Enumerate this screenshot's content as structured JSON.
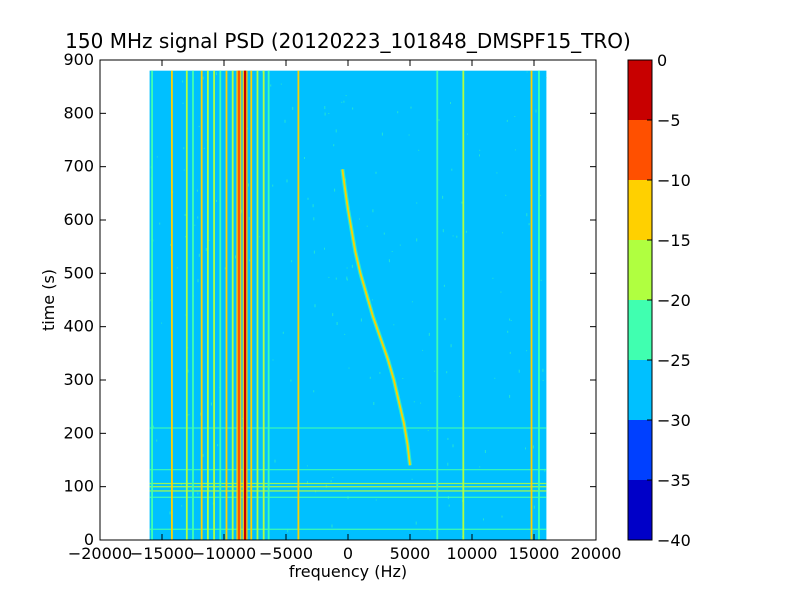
{
  "chart_data": {
    "type": "heatmap",
    "title": "150 MHz signal PSD (20120223_101848_DMSPF15_TRO)",
    "xlabel": "frequency (Hz)",
    "ylabel": "time (s)",
    "xlim": [
      -20000,
      20000
    ],
    "ylim": [
      0,
      900
    ],
    "data_extent": {
      "x": [
        -16000,
        16000
      ],
      "y": [
        0,
        880
      ]
    },
    "xticks": [
      -20000,
      -15000,
      -10000,
      -5000,
      0,
      5000,
      10000,
      15000,
      20000
    ],
    "xtick_labels": [
      "−20000",
      "−15000",
      "−10000",
      "−5000",
      "0",
      "5000",
      "10000",
      "15000",
      "20000"
    ],
    "yticks": [
      0,
      100,
      200,
      300,
      400,
      500,
      600,
      700,
      800,
      900
    ],
    "ytick_labels": [
      "0",
      "100",
      "200",
      "300",
      "400",
      "500",
      "600",
      "700",
      "800",
      "900"
    ],
    "background_level_db": -27,
    "colorbar": {
      "levels": [
        -40,
        -35,
        -30,
        -25,
        -20,
        -15,
        -10,
        -5,
        0
      ],
      "tick_labels": [
        "−40",
        "−35",
        "−30",
        "−25",
        "−20",
        "−15",
        "−10",
        "−5",
        "0"
      ],
      "colors": [
        "#0000c8",
        "#0040ff",
        "#00c0ff",
        "#40ffb0",
        "#b0ff40",
        "#ffd000",
        "#ff5000",
        "#c80000"
      ]
    },
    "vertical_lines": [
      {
        "freq_hz": -15800,
        "level_db": -22
      },
      {
        "freq_hz": -14200,
        "level_db": -12
      },
      {
        "freq_hz": -13000,
        "level_db": -17
      },
      {
        "freq_hz": -12500,
        "level_db": -22
      },
      {
        "freq_hz": -11800,
        "level_db": -15
      },
      {
        "freq_hz": -11300,
        "level_db": -20
      },
      {
        "freq_hz": -10800,
        "level_db": -17
      },
      {
        "freq_hz": -10300,
        "level_db": -22
      },
      {
        "freq_hz": -9800,
        "level_db": -12
      },
      {
        "freq_hz": -9300,
        "level_db": -17
      },
      {
        "freq_hz": -8800,
        "level_db": -8
      },
      {
        "freq_hz": -8300,
        "level_db": -2
      },
      {
        "freq_hz": -7800,
        "level_db": -12
      },
      {
        "freq_hz": -7300,
        "level_db": -17
      },
      {
        "freq_hz": -6800,
        "level_db": -20
      },
      {
        "freq_hz": -6400,
        "level_db": -22
      },
      {
        "freq_hz": -4000,
        "level_db": -13
      },
      {
        "freq_hz": 7200,
        "level_db": -22
      },
      {
        "freq_hz": 9300,
        "level_db": -17
      },
      {
        "freq_hz": 14800,
        "level_db": -13
      },
      {
        "freq_hz": 15400,
        "level_db": -22
      }
    ],
    "horizontal_lines": [
      {
        "time_s": 20,
        "level_db": -22
      },
      {
        "time_s": 80,
        "level_db": -22
      },
      {
        "time_s": 92,
        "level_db": -20
      },
      {
        "time_s": 100,
        "level_db": -17
      },
      {
        "time_s": 106,
        "level_db": -20
      },
      {
        "time_s": 132,
        "level_db": -22
      },
      {
        "time_s": 210,
        "level_db": -22
      }
    ],
    "doppler_trace": {
      "level_db": -15,
      "points": [
        {
          "t": 140,
          "f": 5000
        },
        {
          "t": 180,
          "f": 4800
        },
        {
          "t": 220,
          "f": 4500
        },
        {
          "t": 260,
          "f": 4100
        },
        {
          "t": 300,
          "f": 3700
        },
        {
          "t": 340,
          "f": 3200
        },
        {
          "t": 380,
          "f": 2600
        },
        {
          "t": 420,
          "f": 2000
        },
        {
          "t": 460,
          "f": 1500
        },
        {
          "t": 500,
          "f": 1000
        },
        {
          "t": 540,
          "f": 600
        },
        {
          "t": 580,
          "f": 300
        },
        {
          "t": 620,
          "f": 0
        },
        {
          "t": 660,
          "f": -250
        },
        {
          "t": 695,
          "f": -450
        }
      ]
    }
  }
}
